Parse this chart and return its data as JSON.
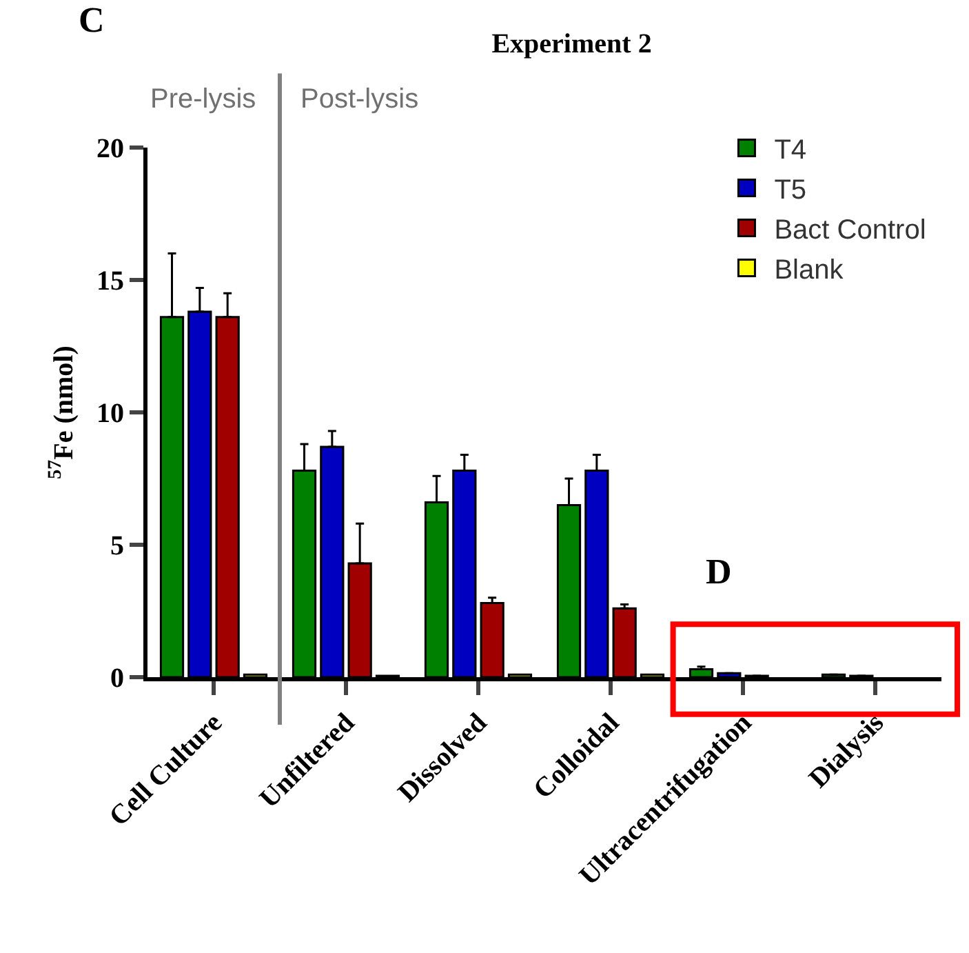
{
  "chart_data": {
    "type": "bar",
    "title": "Experiment 2",
    "ylabel": "$^{57}$Fe (nmol)",
    "categories": [
      "Cell Culture",
      "Unfiltered",
      "Dissolved",
      "Colloidal",
      "Ultracentrifugation",
      "Dialysis"
    ],
    "series": [
      {
        "name": "T4",
        "color": "#008000",
        "values": [
          13.6,
          7.8,
          6.6,
          6.5,
          0.3,
          0.1
        ],
        "errors": [
          [
            13.6,
            16.0
          ],
          [
            7.8,
            8.8
          ],
          [
            6.6,
            7.6
          ],
          [
            6.5,
            7.5
          ],
          [
            0.3,
            0.4
          ],
          null
        ]
      },
      {
        "name": "T5",
        "color": "#0000c0",
        "values": [
          13.8,
          8.7,
          7.8,
          7.8,
          0.15,
          0.05
        ],
        "errors": [
          [
            13.8,
            14.7
          ],
          [
            8.7,
            9.3
          ],
          [
            7.8,
            8.4
          ],
          [
            7.8,
            8.4
          ],
          null,
          null
        ]
      },
      {
        "name": "Bact Control",
        "color": "#a00000",
        "values": [
          13.6,
          4.3,
          2.8,
          2.6,
          0.05,
          null
        ],
        "errors": [
          [
            13.6,
            14.5
          ],
          [
            4.3,
            5.8
          ],
          [
            2.8,
            3.0
          ],
          [
            2.6,
            2.75
          ],
          null,
          null
        ]
      },
      {
        "name": "Blank",
        "color": "#ffff00",
        "values": [
          0.1,
          0.05,
          0.1,
          0.1,
          null,
          null
        ]
      }
    ],
    "ylim": [
      0,
      20
    ],
    "yticks": [
      0,
      5,
      10,
      15,
      20
    ],
    "grid": false,
    "legend": "top right",
    "annotations": [
      "C",
      "D",
      "Pre-lysis",
      "Post-lysis"
    ]
  }
}
